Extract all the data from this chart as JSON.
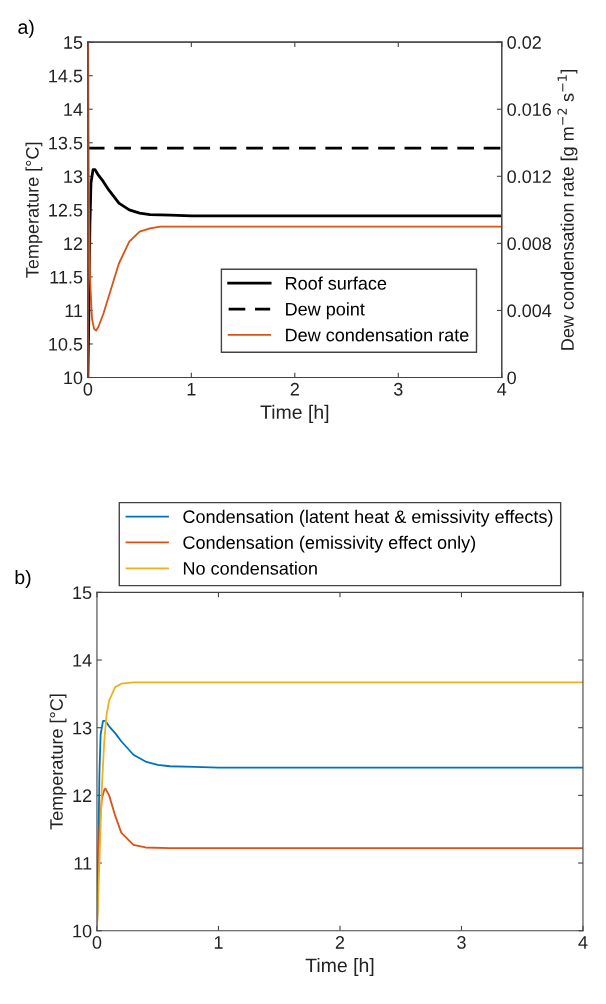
{
  "chart_data": [
    {
      "type": "line",
      "title": "a)",
      "xlabel": "Time [h]",
      "ylabel": "Temperature [°C]",
      "y2label": "Dew condensation rate [g m$^{−2}$ s$^{−1}$]",
      "xlim": [
        0,
        4
      ],
      "xticks": [
        0,
        1,
        2,
        3,
        4
      ],
      "ylim": [
        10,
        15
      ],
      "yticks": [
        10,
        10.5,
        11,
        11.5,
        12,
        12.5,
        13,
        13.5,
        14,
        14.5,
        15
      ],
      "y2lim": [
        0,
        0.02
      ],
      "y2ticks": [
        0,
        0.004,
        0.008,
        0.012,
        0.016,
        0.02
      ],
      "legend": "bottom right",
      "series": [
        {
          "name": "Roof surface",
          "color": "#000000",
          "line_style": "solid",
          "x": [
            0,
            0.01,
            0.02,
            0.03,
            0.05,
            0.07,
            0.1,
            0.15,
            0.2,
            0.3,
            0.4,
            0.5,
            0.6,
            0.8,
            1,
            2,
            3,
            4
          ],
          "values": [
            10,
            11,
            12.3,
            12.9,
            13.1,
            13.1,
            13.02,
            12.92,
            12.8,
            12.6,
            12.5,
            12.45,
            12.43,
            12.42,
            12.41,
            12.41,
            12.41,
            12.41
          ]
        },
        {
          "name": "Dew point",
          "color": "#000000",
          "line_style": "dashed",
          "x": [
            0,
            4
          ],
          "values": [
            13.42,
            13.42
          ]
        },
        {
          "name": "Dew condensation rate",
          "color": "#d95319",
          "line_style": "solid",
          "axis": "y2",
          "x": [
            0,
            0.003,
            0.008,
            0.02,
            0.04,
            0.06,
            0.08,
            0.1,
            0.15,
            0.2,
            0.3,
            0.4,
            0.5,
            0.6,
            0.7,
            0.8,
            1,
            2,
            3,
            4
          ],
          "values": [
            0,
            0.02,
            0.012,
            0.006,
            0.0035,
            0.0029,
            0.0028,
            0.003,
            0.0038,
            0.0048,
            0.0068,
            0.0081,
            0.0087,
            0.0089,
            0.009,
            0.009,
            0.009,
            0.009,
            0.009,
            0.009
          ]
        }
      ]
    },
    {
      "type": "line",
      "title": "b)",
      "xlabel": "Time [h]",
      "ylabel": "Temperature [°C]",
      "xlim": [
        0,
        4
      ],
      "xticks": [
        0,
        1,
        2,
        3,
        4
      ],
      "ylim": [
        10,
        15
      ],
      "yticks": [
        10,
        11,
        12,
        13,
        14,
        15
      ],
      "legend": "top",
      "series": [
        {
          "name": "Condensation (latent heat & emissivity effects)",
          "color": "#0072bd",
          "line_style": "solid",
          "x": [
            0,
            0.01,
            0.02,
            0.03,
            0.05,
            0.07,
            0.1,
            0.15,
            0.2,
            0.3,
            0.4,
            0.5,
            0.6,
            0.8,
            1,
            2,
            3,
            4
          ],
          "values": [
            10,
            11,
            12.3,
            12.9,
            13.1,
            13.1,
            13.02,
            12.92,
            12.8,
            12.6,
            12.5,
            12.45,
            12.43,
            12.42,
            12.41,
            12.41,
            12.41,
            12.41
          ]
        },
        {
          "name": "Condensation (emissivity effect only)",
          "color": "#d95319",
          "line_style": "solid",
          "x": [
            0,
            0.01,
            0.02,
            0.04,
            0.06,
            0.07,
            0.1,
            0.15,
            0.2,
            0.3,
            0.4,
            0.6,
            1,
            2,
            3,
            4
          ],
          "values": [
            10,
            10.9,
            11.5,
            11.95,
            12.08,
            12.1,
            12.0,
            11.7,
            11.45,
            11.27,
            11.23,
            11.22,
            11.22,
            11.22,
            11.22,
            11.22
          ]
        },
        {
          "name": "No condensation",
          "color": "#edb120",
          "line_style": "solid",
          "x": [
            0,
            0.02,
            0.04,
            0.06,
            0.08,
            0.1,
            0.15,
            0.2,
            0.3,
            0.5,
            1,
            2,
            3,
            4
          ],
          "values": [
            10,
            11,
            12.1,
            12.8,
            13.2,
            13.4,
            13.6,
            13.65,
            13.67,
            13.67,
            13.67,
            13.67,
            13.67,
            13.67
          ]
        }
      ]
    }
  ]
}
